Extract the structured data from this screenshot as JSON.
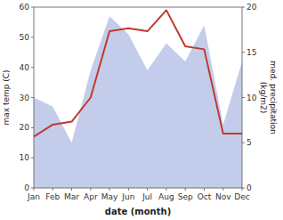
{
  "chart_data": {
    "type": "line",
    "categories": [
      "Jan",
      "Feb",
      "Mar",
      "Apr",
      "May",
      "Jun",
      "Jul",
      "Aug",
      "Sep",
      "Oct",
      "Nov",
      "Dec"
    ],
    "xlabel": "date (month)",
    "ylabel": "max temp (C)",
    "y2label": "med. precipitation\n(kg/m2)",
    "ylim": [
      0,
      60
    ],
    "yticks": [
      0,
      10,
      20,
      30,
      40,
      50,
      60
    ],
    "y2lim": [
      0,
      20
    ],
    "y2ticks": [
      0,
      5,
      10,
      15,
      20
    ],
    "series": [
      {
        "type": "area",
        "axis": "y2",
        "color": "#b8c4e8",
        "values": [
          10,
          9,
          5,
          13,
          19,
          17,
          13,
          16,
          14,
          18,
          7,
          14
        ]
      },
      {
        "type": "line",
        "color": "#c0392b",
        "values": [
          17,
          21,
          22,
          30,
          52,
          53,
          52,
          59,
          47,
          46,
          18,
          18
        ]
      }
    ]
  }
}
